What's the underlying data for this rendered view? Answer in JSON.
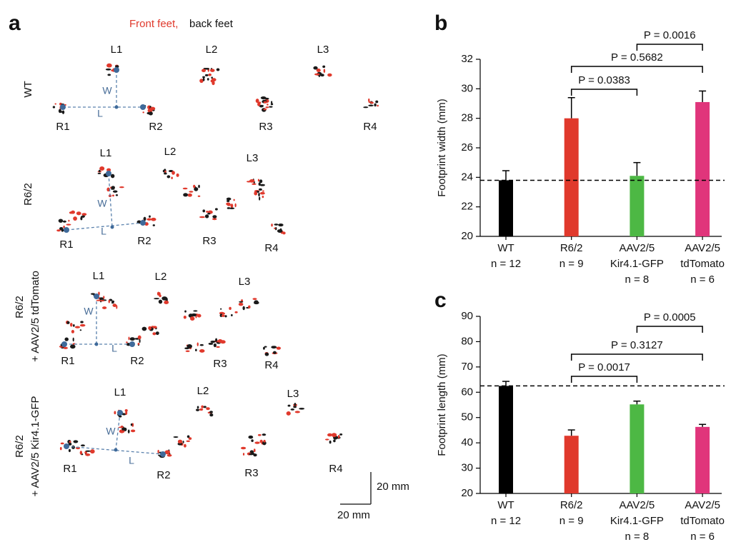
{
  "panel_labels": [
    "a",
    "b",
    "c"
  ],
  "panel_a": {
    "legend": [
      "Front feet,",
      "back feet"
    ],
    "rows": [
      {
        "label": [
          "WT"
        ],
        "feet": [
          "L1",
          "L2",
          "L3",
          "R1",
          "R2",
          "R3",
          "R4"
        ],
        "measures": [
          "W",
          "L"
        ]
      },
      {
        "label": [
          "R6/2"
        ],
        "feet": [
          "L1",
          "L2",
          "L3",
          "R1",
          "R2",
          "R3",
          "R4"
        ],
        "measures": [
          "W",
          "L"
        ]
      },
      {
        "label": [
          "R6/2",
          "+ AAV2/5 tdTomato"
        ],
        "feet": [
          "L1",
          "L2",
          "L3",
          "R1",
          "R2",
          "R3",
          "R4"
        ],
        "measures": [
          "W",
          "L"
        ]
      },
      {
        "label": [
          "R6/2",
          "+ AAV2/5 Kir4.1-GFP"
        ],
        "feet": [
          "L1",
          "L2",
          "L3",
          "R1",
          "R2",
          "R3",
          "R4"
        ],
        "measures": [
          "W",
          "L"
        ]
      }
    ],
    "scale_bar": [
      "20 mm",
      "20 mm"
    ]
  },
  "chart_data": [
    {
      "type": "bar",
      "y_label": "Footprint width (mm)",
      "categories": [
        [
          "WT",
          "n = 12"
        ],
        [
          "R6/2",
          "n = 9"
        ],
        [
          "AAV2/5",
          "Kir4.1-GFP",
          "n = 8"
        ],
        [
          "AAV2/5",
          "tdTomato",
          "n = 6"
        ]
      ],
      "values": [
        23.8,
        28.0,
        24.1,
        29.1
      ],
      "errors": [
        0.65,
        1.4,
        0.9,
        0.75
      ],
      "colors": [
        "#000000",
        "#e0392c",
        "#4db844",
        "#e0357b"
      ],
      "ylim": [
        20,
        32
      ],
      "yticks": [
        20,
        22,
        24,
        26,
        28,
        30,
        32
      ],
      "reference_line": 23.8,
      "annotations": [
        {
          "text": "P = 0.0383",
          "from": 1,
          "to": 2
        },
        {
          "text": "P = 0.5682",
          "from": 1,
          "to": 3
        },
        {
          "text": "P = 0.0016",
          "from": 2,
          "to": 3
        }
      ]
    },
    {
      "type": "bar",
      "y_label": "Footprint length (mm)",
      "categories": [
        [
          "WT",
          "n = 12"
        ],
        [
          "R6/2",
          "n = 9"
        ],
        [
          "AAV2/5",
          "Kir4.1-GFP",
          "n = 8"
        ],
        [
          "AAV2/5",
          "tdTomato",
          "n = 6"
        ]
      ],
      "values": [
        62.5,
        42.8,
        55.2,
        46.3
      ],
      "errors": [
        1.8,
        2.3,
        1.3,
        1.0
      ],
      "colors": [
        "#000000",
        "#e0392c",
        "#4db844",
        "#e0357b"
      ],
      "ylim": [
        20,
        90
      ],
      "yticks": [
        20,
        30,
        40,
        50,
        60,
        70,
        80,
        90
      ],
      "reference_line": 62.5,
      "annotations": [
        {
          "text": "P = 0.0017",
          "from": 1,
          "to": 2
        },
        {
          "text": "P = 0.3127",
          "from": 1,
          "to": 3
        },
        {
          "text": "P = 0.0005",
          "from": 2,
          "to": 3
        }
      ]
    }
  ]
}
